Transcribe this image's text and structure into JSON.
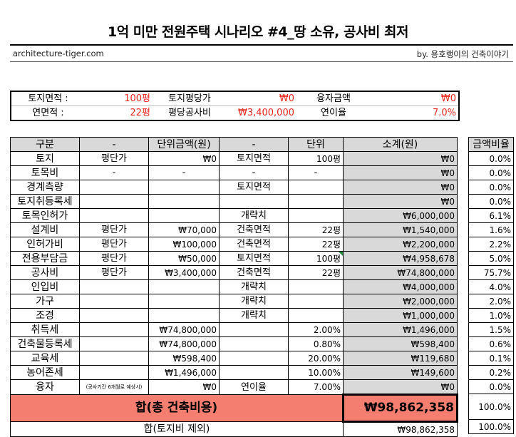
{
  "header": {
    "title": "1억 미만 전원주택 시나리오 #4_땅 소유, 공사비 최저",
    "site": "architecture-tiger.com",
    "byline": "by. 용호랭이의 건축이야기"
  },
  "info": {
    "land_area_label": "토지면적 :",
    "land_area_value": "100평",
    "land_price_label": "토지평당가",
    "land_price_value": "₩0",
    "loan_label": "융자금액",
    "loan_value": "₩0",
    "floor_area_label": "연면적 :",
    "floor_area_value": "22평",
    "cost_per_pyeong_label": "평당공사비",
    "cost_per_pyeong_value": "₩3,400,000",
    "interest_label": "연이율",
    "interest_value": "7.0%"
  },
  "table": {
    "headers": [
      "구분",
      "-",
      "단위금액(원)",
      "-",
      "단위",
      "소계(원)"
    ],
    "rows": [
      {
        "name": "토지",
        "col1": "평단가",
        "unit_price": "₩0",
        "col3": "토지면적",
        "unit": "100평",
        "subtotal": "₩0"
      },
      {
        "name": "토목비",
        "col1": "-",
        "unit_price": "-",
        "col3": "-",
        "unit": "-",
        "subtotal": "₩0"
      },
      {
        "name": "경계측량",
        "col1": "",
        "unit_price": "",
        "col3": "토지면적",
        "unit": "",
        "subtotal": "₩0"
      },
      {
        "name": "토지취등록세",
        "col1": "",
        "unit_price": "",
        "col3": "",
        "unit": "",
        "subtotal": "₩0"
      },
      {
        "name": "토목인허가",
        "col1": "",
        "unit_price": "",
        "col3": "개략치",
        "unit": "",
        "subtotal": "₩6,000,000"
      },
      {
        "name": "설계비",
        "col1": "평단가",
        "unit_price": "₩70,000",
        "col3": "건축면적",
        "unit": "22평",
        "subtotal": "₩1,540,000"
      },
      {
        "name": "인허가비",
        "col1": "평단가",
        "unit_price": "₩100,000",
        "col3": "건축면적",
        "unit": "22평",
        "subtotal": "₩2,200,000"
      },
      {
        "name": "전용부담금",
        "col1": "평단가",
        "unit_price": "₩50,000",
        "col3": "토지면적",
        "unit": "100평",
        "subtotal": "₩4,958,678"
      },
      {
        "name": "공사비",
        "col1": "평단가",
        "unit_price": "₩3,400,000",
        "col3": "건축면적",
        "unit": "22평",
        "subtotal": "₩74,800,000"
      },
      {
        "name": "인입비",
        "col1": "",
        "unit_price": "",
        "col3": "개략치",
        "unit": "",
        "subtotal": "₩4,000,000"
      },
      {
        "name": "가구",
        "col1": "",
        "unit_price": "",
        "col3": "개략치",
        "unit": "",
        "subtotal": "₩2,000,000"
      },
      {
        "name": "조경",
        "col1": "",
        "unit_price": "",
        "col3": "개략치",
        "unit": "",
        "subtotal": "₩1,000,000"
      },
      {
        "name": "취득세",
        "col1": "",
        "unit_price": "₩74,800,000",
        "col3": "",
        "unit": "2.00%",
        "subtotal": "₩1,496,000"
      },
      {
        "name": "건축물등록세",
        "col1": "",
        "unit_price": "₩74,800,000",
        "col3": "",
        "unit": "0.80%",
        "subtotal": "₩598,400"
      },
      {
        "name": "교육세",
        "col1": "",
        "unit_price": "₩598,400",
        "col3": "",
        "unit": "20.00%",
        "subtotal": "₩119,680"
      },
      {
        "name": "농어존세",
        "col1": "",
        "unit_price": "₩1,496,000",
        "col3": "",
        "unit": "10.00%",
        "subtotal": "₩149,600"
      },
      {
        "name": "융자",
        "col1": "(공사기간 6개월로 예상시)",
        "unit_price": "₩0",
        "col3": "연이율",
        "unit": "7.00%",
        "subtotal": "₩0"
      }
    ],
    "total_label": "합(총 건축비용)",
    "total_value": "₩98,862,358",
    "subtotal_label": "합(토지비 제외)",
    "subtotal_value": "₩98,862,358"
  },
  "ratio": {
    "header": "금액비율",
    "values": [
      "0.0%",
      "0.0%",
      "0.0%",
      "0.0%",
      "6.1%",
      "1.6%",
      "2.2%",
      "5.0%",
      "75.7%",
      "4.0%",
      "2.0%",
      "1.0%",
      "1.5%",
      "0.6%",
      "0.1%",
      "0.2%",
      "0.0%"
    ],
    "total": "100.0%",
    "subtotal": "100.0%"
  },
  "colors": {
    "accent_red": "#e8281e",
    "total_fill": "#f47f71",
    "header_gray": "#d9d9d9"
  }
}
